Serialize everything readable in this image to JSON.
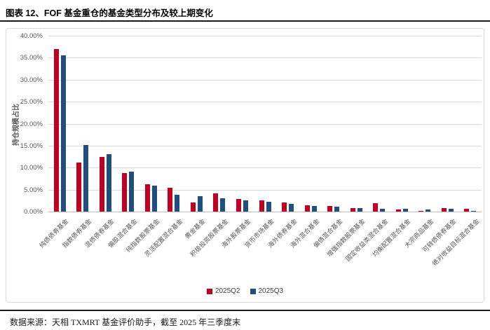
{
  "title": "图表 12、FOF 基金重仓的基金类型分布及较上期变化",
  "footer": "数据来源：天相 TXMRT 基金评价助手，截至 2025 年三季度末",
  "colors": {
    "q2_red": "#C00023",
    "q3_blue": "#1F4E80",
    "gridline": "#D9D9D9",
    "axis_text": "#595959"
  },
  "chart_data": {
    "type": "bar",
    "title": "",
    "xlabel": "",
    "ylabel": "持仓规模占比",
    "ylim": [
      0,
      40
    ],
    "ytick_step": 5,
    "ytick_suffix": "%",
    "grid": true,
    "legend_position": "bottom",
    "categories": [
      "纯债债券基金",
      "指数债券基金",
      "混债债券基金",
      "偏股混合基金",
      "纯指数股票基金",
      "灵活配置混合基金",
      "黄金基金",
      "积极投资股票基金",
      "海外股票基金",
      "货币市场基金",
      "海外债券基金",
      "海外混合基金",
      "偏债混合基金",
      "增强指数股票基金",
      "固定收益类混合基金",
      "均衡配置混合基金",
      "大宗商品基金",
      "可转债债券基金",
      "绝对收益目标混合基金"
    ],
    "series": [
      {
        "name": "2025Q2",
        "color": "#C00023",
        "values": [
          36.9,
          11.2,
          12.5,
          8.8,
          6.2,
          5.4,
          2.0,
          4.2,
          2.8,
          2.6,
          2.1,
          1.5,
          1.2,
          0.8,
          1.9,
          0.55,
          0.1,
          0.85,
          0.6
        ]
      },
      {
        "name": "2025Q3",
        "color": "#1F4E80",
        "values": [
          35.6,
          15.1,
          13.0,
          9.1,
          5.9,
          3.9,
          3.5,
          3.1,
          2.6,
          2.2,
          1.8,
          1.3,
          1.1,
          0.75,
          0.7,
          0.65,
          0.55,
          0.65,
          0.15
        ]
      }
    ]
  }
}
